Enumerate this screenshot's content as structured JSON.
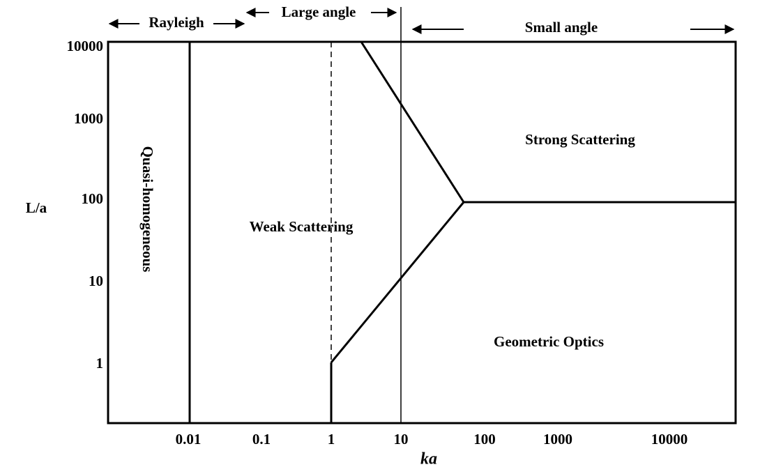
{
  "top_labels": {
    "rayleigh": "Rayleigh",
    "large_angle": "Large angle",
    "small_angle": "Small angle"
  },
  "regions": {
    "quasi_homogeneous": "Quasi-homogeneous",
    "weak_scattering": "Weak Scattering",
    "strong_scattering": "Strong Scattering",
    "geometric_optics": "Geometric Optics"
  },
  "axes": {
    "y_label": "L/a",
    "x_label": "ka",
    "y_ticks": [
      "10000",
      "1000",
      "100",
      "10",
      "1"
    ],
    "x_ticks": [
      "0.01",
      "0.1",
      "1",
      "10",
      "100",
      "1000",
      "10000"
    ]
  }
}
